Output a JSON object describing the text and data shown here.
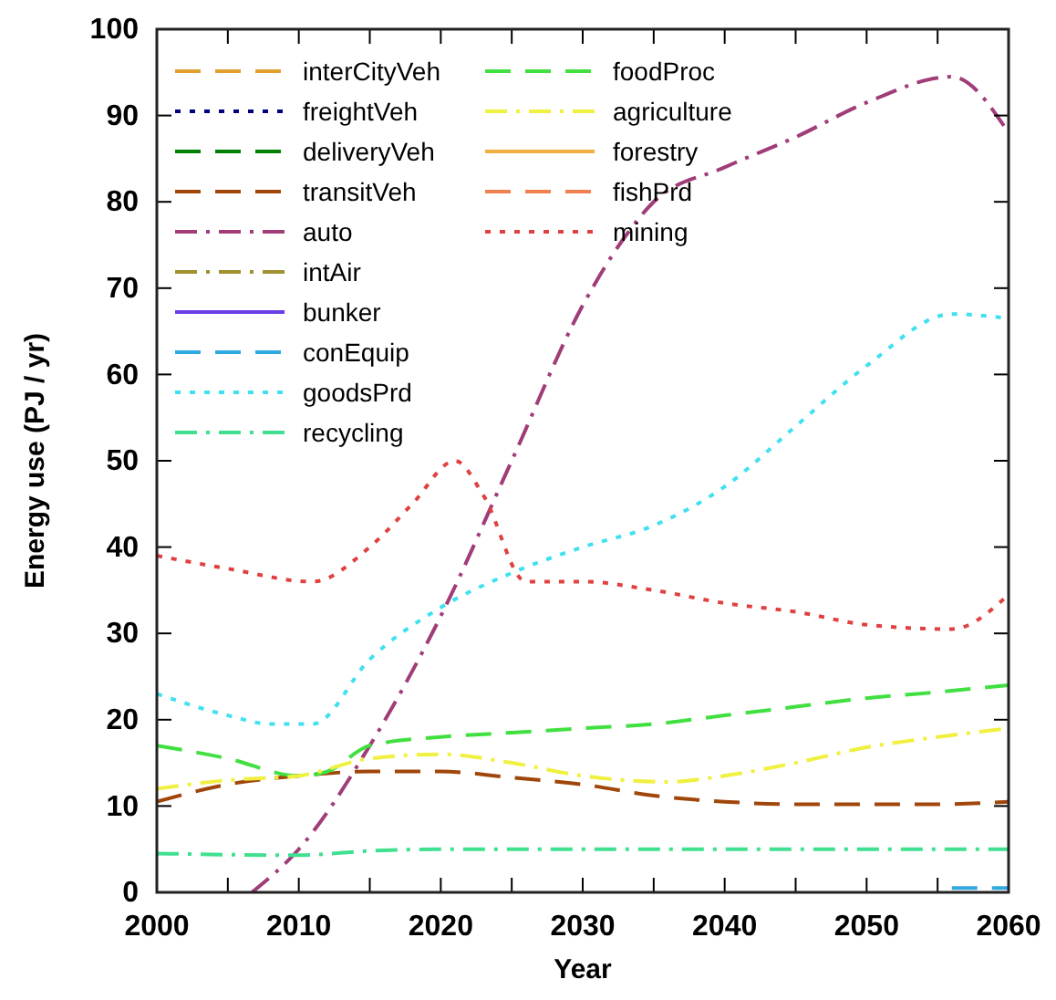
{
  "chart_data": {
    "type": "line",
    "xlabel": "Year",
    "ylabel": "Energy use (PJ / yr)",
    "xlim": [
      2000,
      2060
    ],
    "ylim": [
      0,
      100
    ],
    "xticks": [
      2000,
      {
        "value": 2005,
        "label": null
      },
      2010,
      {
        "value": 2015,
        "label": null
      },
      2020,
      {
        "value": 2025,
        "label": null
      },
      2030,
      {
        "value": 2035,
        "label": null
      },
      2040,
      {
        "value": 2045,
        "label": null
      },
      2050,
      {
        "value": 2055,
        "label": null
      },
      2060
    ],
    "yticks": [
      0,
      10,
      20,
      30,
      40,
      50,
      60,
      70,
      80,
      90,
      100
    ],
    "grid": false,
    "legend": "top left",
    "marker": "none",
    "series": [
      {
        "name": "interCityVeh",
        "color": "#e0a030",
        "line_style": "dashed"
      },
      {
        "name": "freightVeh",
        "color": "#000080",
        "line_style": "dotted"
      },
      {
        "name": "deliveryVeh",
        "color": "#008000",
        "line_style": "dashed"
      },
      {
        "name": "transitVeh",
        "color": "#a0460a",
        "line_style": "dashed",
        "x": [
          2000,
          2005,
          2010,
          2015,
          2020,
          2025,
          2030,
          2035,
          2040,
          2045,
          2050,
          2055,
          2060
        ],
        "values": [
          10.5,
          12.5,
          13.5,
          14,
          14,
          13.3,
          12.5,
          11.2,
          10.5,
          10.2,
          10.2,
          10.2,
          10.5
        ]
      },
      {
        "name": "auto",
        "color": "#a03c78",
        "line_style": "dashdot",
        "x": [
          2006.7,
          2010,
          2015,
          2020,
          2025,
          2030,
          2033,
          2035,
          2040,
          2045,
          2050,
          2056,
          2060
        ],
        "values": [
          0,
          5,
          17,
          32,
          50,
          68,
          76,
          80,
          84,
          87.5,
          91.5,
          94.5,
          88
        ]
      },
      {
        "name": "intAir",
        "color": "#a09030",
        "line_style": "dashdot"
      },
      {
        "name": "bunker",
        "color": "#6a3de8",
        "line_style": "solid"
      },
      {
        "name": "conEquip",
        "color": "#30a8e0",
        "line_style": "dashed",
        "x": [
          2056,
          2060
        ],
        "values": [
          0.5,
          0.5
        ]
      },
      {
        "name": "goodsPrd",
        "color": "#40e0f0",
        "line_style": "dotted",
        "x": [
          2000,
          2005,
          2008,
          2011,
          2015,
          2020,
          2025,
          2030,
          2035,
          2040,
          2045,
          2050,
          2056,
          2060
        ],
        "values": [
          23,
          20.5,
          19.5,
          19.5,
          27,
          33,
          37,
          40,
          42.5,
          47,
          54,
          61,
          67,
          66.5
        ]
      },
      {
        "name": "recycling",
        "color": "#40e090",
        "line_style": "dashdot",
        "x": [
          2000,
          2010,
          2015,
          2020,
          2030,
          2040,
          2050,
          2060
        ],
        "values": [
          4.5,
          4.3,
          4.8,
          5,
          5,
          5,
          5,
          5
        ]
      },
      {
        "name": "foodProc",
        "color": "#40e040",
        "line_style": "dashed",
        "x": [
          2000,
          2005,
          2010,
          2012,
          2015,
          2020,
          2025,
          2030,
          2035,
          2040,
          2045,
          2050,
          2055,
          2060
        ],
        "values": [
          17,
          15.5,
          13.5,
          14,
          17,
          18,
          18.5,
          19,
          19.5,
          20.5,
          21.5,
          22.5,
          23.2,
          24
        ]
      },
      {
        "name": "agriculture",
        "color": "#f0f040",
        "line_style": "dashdot",
        "x": [
          2000,
          2005,
          2010,
          2015,
          2020,
          2025,
          2030,
          2036,
          2040,
          2045,
          2050,
          2055,
          2060
        ],
        "values": [
          12,
          13,
          13.5,
          15.5,
          16,
          15,
          13.5,
          12.8,
          13.5,
          15,
          16.8,
          18,
          19
        ]
      },
      {
        "name": "forestry",
        "color": "#f0b040",
        "line_style": "solid"
      },
      {
        "name": "fishPrd",
        "color": "#f08050",
        "line_style": "dashed"
      },
      {
        "name": "mining",
        "color": "#e04040",
        "line_style": "dotted",
        "x": [
          2000,
          2005,
          2011,
          2015,
          2018,
          2021,
          2023,
          2026,
          2030,
          2035,
          2040,
          2045,
          2050,
          2056,
          2060
        ],
        "values": [
          39,
          37.5,
          36,
          40,
          45,
          50,
          46,
          36,
          36,
          35,
          33.5,
          32.5,
          31,
          30.5,
          34.5
        ]
      }
    ]
  }
}
